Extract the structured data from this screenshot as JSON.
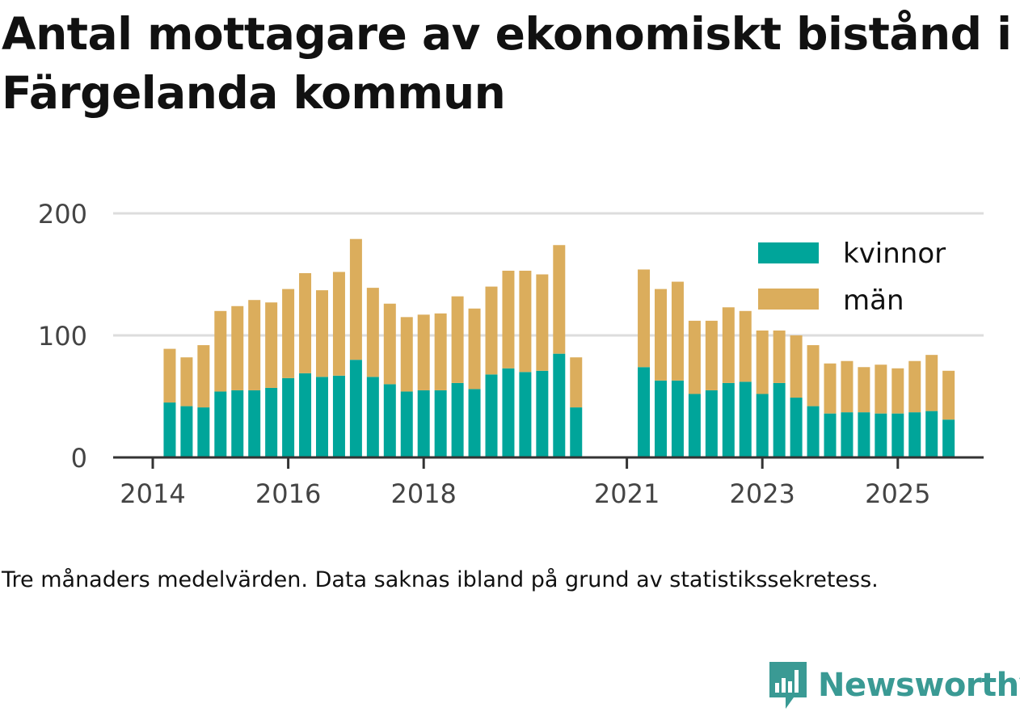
{
  "title": "Antal mottagare av ekonomiskt bistånd i Färgelanda kommun",
  "note": "Tre månaders medelvärden. Data saknas ibland på grund av statistikssekretess.",
  "brand": {
    "name": "Newsworthy",
    "icon": "newsworthy-logo-icon"
  },
  "colors": {
    "kvinnor": "#00a59a",
    "man": "#dbad5c",
    "grid": "#dddddd",
    "axis": "#333333",
    "brand": "#3a9a94"
  },
  "chart_data": {
    "type": "bar",
    "stacked": true,
    "title": "Antal mottagare av ekonomiskt bistånd i Färgelanda kommun",
    "xlabel": "",
    "ylabel": "",
    "ylim": [
      0,
      200
    ],
    "yticks": [
      0,
      100,
      200
    ],
    "grid": true,
    "legend_position": "top-right",
    "xticks": [
      {
        "label": "2014",
        "pos": 0
      },
      {
        "label": "2016",
        "pos": 8
      },
      {
        "label": "2018",
        "pos": 16
      },
      {
        "label": "2021",
        "pos": 28
      },
      {
        "label": "2023",
        "pos": 36
      },
      {
        "label": "2025",
        "pos": 44
      }
    ],
    "categories": [
      "2014 Q2",
      "2014 Q3",
      "2014 Q4",
      "2015 Q1",
      "2015 Q2",
      "2015 Q3",
      "2015 Q4",
      "2016 Q1",
      "2016 Q2",
      "2016 Q3",
      "2016 Q4",
      "2017 Q1",
      "2017 Q2",
      "2017 Q3",
      "2017 Q4",
      "2018 Q1",
      "2018 Q2",
      "2018 Q3",
      "2018 Q4",
      "2019 Q1",
      "2019 Q2",
      "2019 Q3",
      "2019 Q4",
      "2020 Q1",
      "2020 Q2",
      "2020 Q3",
      "2020 Q4",
      "2021 Q1",
      "2021 Q2",
      "2021 Q3",
      "2021 Q4",
      "2022 Q1",
      "2022 Q2",
      "2022 Q3",
      "2022 Q4",
      "2023 Q1",
      "2023 Q2",
      "2023 Q3",
      "2023 Q4",
      "2024 Q1",
      "2024 Q2",
      "2024 Q3",
      "2024 Q4",
      "2025 Q1",
      "2025 Q2",
      "2025 Q3",
      "2025 Q4"
    ],
    "series": [
      {
        "name": "kvinnor",
        "values": [
          45,
          42,
          41,
          54,
          55,
          55,
          57,
          65,
          69,
          66,
          67,
          80,
          66,
          60,
          54,
          55,
          55,
          61,
          56,
          68,
          73,
          70,
          71,
          85,
          41,
          null,
          null,
          null,
          74,
          63,
          63,
          52,
          55,
          61,
          62,
          52,
          61,
          49,
          42,
          36,
          37,
          37,
          36,
          36,
          37,
          38,
          31
        ]
      },
      {
        "name": "män",
        "values": [
          44,
          40,
          51,
          66,
          69,
          74,
          70,
          73,
          82,
          71,
          85,
          99,
          73,
          66,
          61,
          62,
          63,
          71,
          66,
          72,
          80,
          83,
          79,
          89,
          41,
          null,
          null,
          null,
          80,
          75,
          81,
          60,
          57,
          62,
          58,
          52,
          43,
          51,
          50,
          41,
          42,
          37,
          40,
          37,
          42,
          46,
          40
        ]
      }
    ]
  }
}
